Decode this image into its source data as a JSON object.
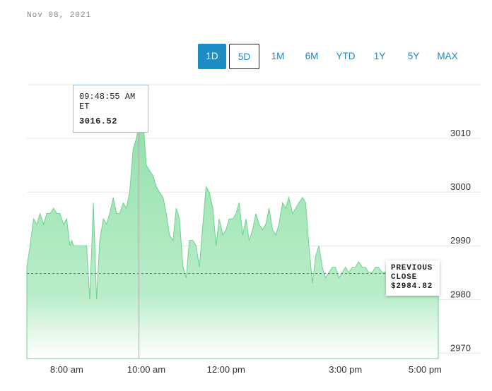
{
  "date_label": "Nov 08, 2021",
  "range_buttons": [
    {
      "label": "1D",
      "state": "active"
    },
    {
      "label": "5D",
      "state": "outlined"
    },
    {
      "label": "1M",
      "state": "plain"
    },
    {
      "label": "6M",
      "state": "plain"
    },
    {
      "label": "YTD",
      "state": "plain"
    },
    {
      "label": "1Y",
      "state": "plain"
    },
    {
      "label": "5Y",
      "state": "plain"
    },
    {
      "label": "MAX",
      "state": "plain"
    }
  ],
  "tooltip": {
    "time": "09:48:55 AM ET",
    "value": "3016.52"
  },
  "previous_close": {
    "line1": "PREVIOUS",
    "line2": "CLOSE",
    "value": "$2984.82"
  },
  "colors": {
    "accent": "#1e8bc3",
    "area_fill": "#8fdfa8",
    "area_line": "#6fd190"
  },
  "chart_data": {
    "type": "area",
    "x_ticks": [
      {
        "label": "8:00 am",
        "x": 8.0
      },
      {
        "label": "10:00 am",
        "x": 10.0
      },
      {
        "label": "12:00 pm",
        "x": 12.0
      },
      {
        "label": "3:00 pm",
        "x": 15.0
      },
      {
        "label": "5:00 pm",
        "x": 17.0
      }
    ],
    "y_ticks": [
      2970,
      2980,
      2990,
      3000,
      3010
    ],
    "ylim": [
      2969,
      3020
    ],
    "previous_close": 2984.82,
    "crosshair_x": 9.815,
    "series": [
      {
        "x": [
          7.0,
          7.08,
          7.17,
          7.25,
          7.33,
          7.42,
          7.5,
          7.58,
          7.67,
          7.75,
          7.83,
          7.92,
          8.0,
          8.08,
          8.13,
          8.17,
          8.2,
          8.25,
          8.33,
          8.42,
          8.5,
          8.58,
          8.67,
          8.75,
          8.83,
          8.92,
          9.0,
          9.08,
          9.17,
          9.25,
          9.33,
          9.42,
          9.5,
          9.58,
          9.67,
          9.75,
          9.8,
          9.85,
          9.92,
          10.0,
          10.08,
          10.17,
          10.25,
          10.33,
          10.42,
          10.5,
          10.58,
          10.67,
          10.75,
          10.83,
          10.92,
          11.0,
          11.08,
          11.17,
          11.25,
          11.33,
          11.42,
          11.5,
          11.58,
          11.67,
          11.75,
          11.83,
          11.92,
          12.0,
          12.08,
          12.17,
          12.25,
          12.33,
          12.42,
          12.5,
          12.58,
          12.67,
          12.75,
          12.83,
          12.92,
          13.0,
          13.08,
          13.17,
          13.25,
          13.33,
          13.42,
          13.5,
          13.58,
          13.67,
          13.75,
          13.83,
          13.92,
          14.0,
          14.08,
          14.17,
          14.25,
          14.33,
          14.42,
          14.5,
          14.58,
          14.67,
          14.75,
          14.83,
          14.92,
          15.0,
          15.08,
          15.17,
          15.25,
          15.33,
          15.42,
          15.5,
          15.58,
          15.67,
          15.75,
          15.83,
          15.92,
          16.0,
          16.08,
          16.17,
          16.25,
          16.33,
          16.42,
          16.5,
          16.58,
          16.67,
          16.75,
          16.83,
          16.92,
          17.0,
          17.08,
          17.17,
          17.25,
          17.33
        ],
        "y": [
          2986,
          2990,
          2995,
          2994,
          2996,
          2994,
          2996,
          2996,
          2997,
          2996,
          2996,
          2994,
          2995,
          2990,
          2991,
          2990,
          2990,
          2990,
          2990,
          2990,
          2990,
          2980,
          2998,
          2980,
          2991,
          2995,
          2994,
          2996,
          2999,
          2996,
          2996,
          2998,
          2997,
          3000,
          3008,
          3010,
          3012,
          3016.5,
          3013,
          3005,
          3004,
          3003,
          3001,
          3000,
          2999,
          2996,
          2992,
          2991,
          2997,
          2995,
          2986,
          2984,
          2991,
          2991,
          2990,
          2986,
          2994,
          3001,
          3000,
          2997,
          2990,
          2995,
          2992,
          2993,
          2995,
          2995,
          2996,
          2998,
          2992,
          2995,
          2991,
          2993,
          2996,
          2994,
          2993,
          2994,
          2997,
          2993,
          2992,
          2994,
          2998,
          2997,
          2999,
          2996,
          2997,
          2998,
          2999,
          2998,
          2990,
          2983,
          2988,
          2990,
          2986,
          2984,
          2985,
          2986,
          2986,
          2984,
          2985,
          2986,
          2985,
          2986,
          2986,
          2987,
          2986,
          2986,
          2985,
          2985,
          2986,
          2986,
          2985,
          2985,
          2986,
          2986,
          2986,
          2985,
          2986,
          2985,
          2986,
          2985,
          2986,
          2985,
          2985,
          2986,
          2986,
          2985,
          2986,
          2986
        ]
      }
    ]
  }
}
